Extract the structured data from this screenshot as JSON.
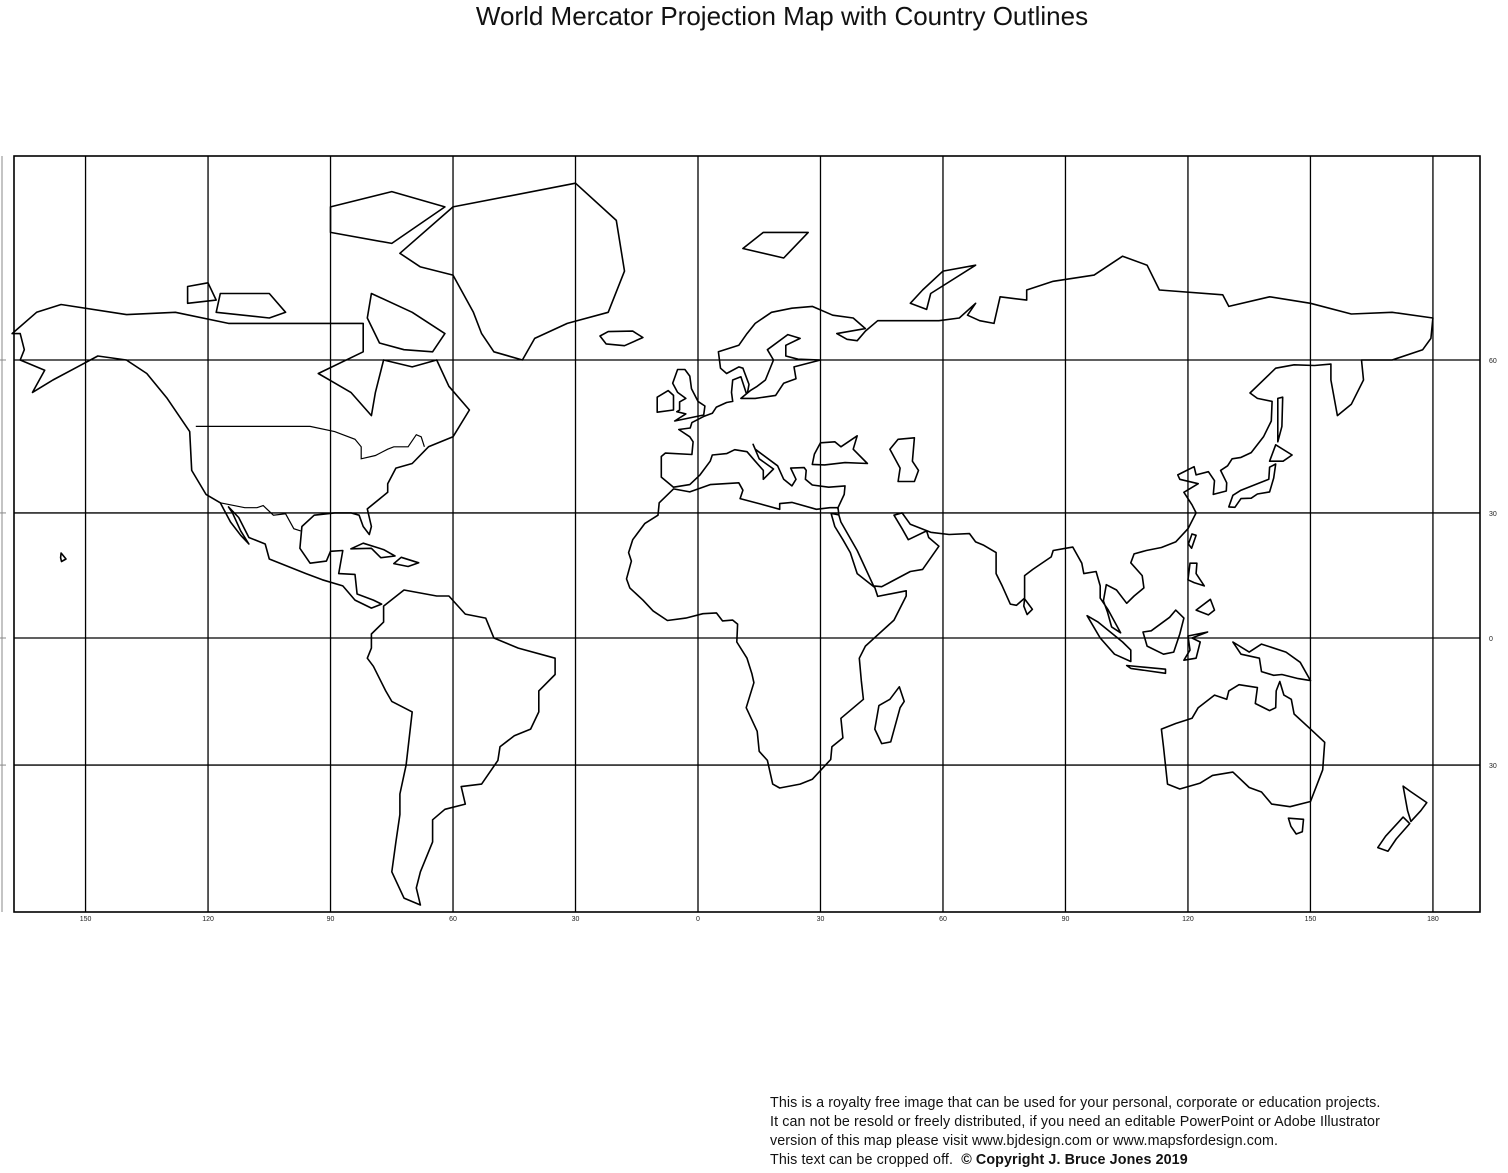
{
  "title": "World Mercator Projection Map with Country Outlines",
  "map": {
    "type": "outline world map",
    "projection": "Mercator",
    "line_color": "#000000",
    "land_fill": "#ffffff",
    "longitude_labels": [
      "150",
      "120",
      "90",
      "60",
      "30",
      "0",
      "30",
      "60",
      "90",
      "120",
      "150",
      "180"
    ],
    "longitude_values": [
      -150,
      -120,
      -90,
      -60,
      -30,
      0,
      30,
      60,
      90,
      120,
      150,
      180
    ],
    "latitude_labels": [
      "60",
      "30",
      "0",
      "30"
    ],
    "latitude_values": [
      60,
      30,
      0,
      -30
    ]
  },
  "footer": {
    "line1": "This is a royalty free image that can be used for your personal, corporate or education projects.",
    "line2": "It can not be resold or freely distributed, if you need an editable PowerPoint or Adobe Illustrator",
    "line3": "version of this map please visit www.bjdesign.com or www.mapsfordesign.com.",
    "line4": "This text can be cropped off.",
    "copyright": "© Copyright J. Bruce Jones 2019"
  }
}
